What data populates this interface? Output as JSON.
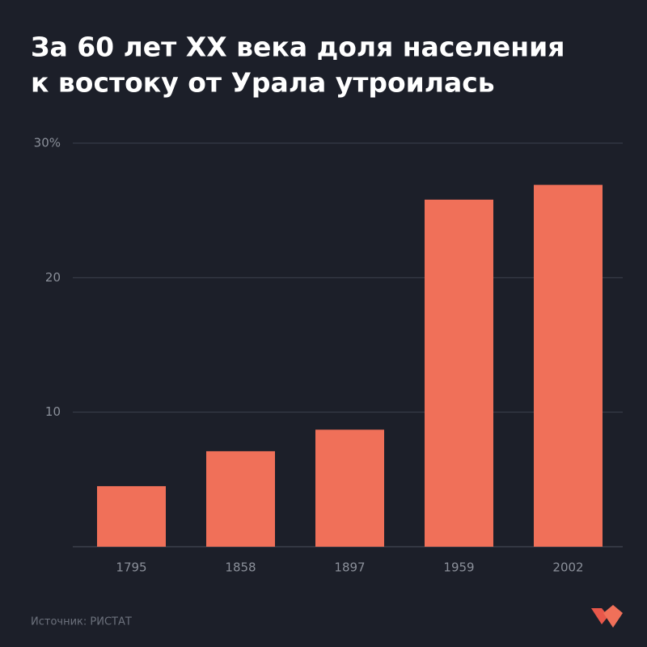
{
  "chart_data": {
    "type": "bar",
    "title": [
      "За 60 лет XX века доля населения",
      "к востоку от Урала утроилась"
    ],
    "categories": [
      "1795",
      "1858",
      "1897",
      "1959",
      "2002"
    ],
    "values": [
      4.5,
      7.1,
      8.7,
      25.8,
      26.9
    ],
    "color": "#f07059",
    "ylim": [
      0,
      30
    ],
    "yticks": [
      10,
      20,
      {
        "value": 30,
        "label": "30%"
      }
    ],
    "grid": true,
    "source": "Источник: РИСТАТ"
  }
}
